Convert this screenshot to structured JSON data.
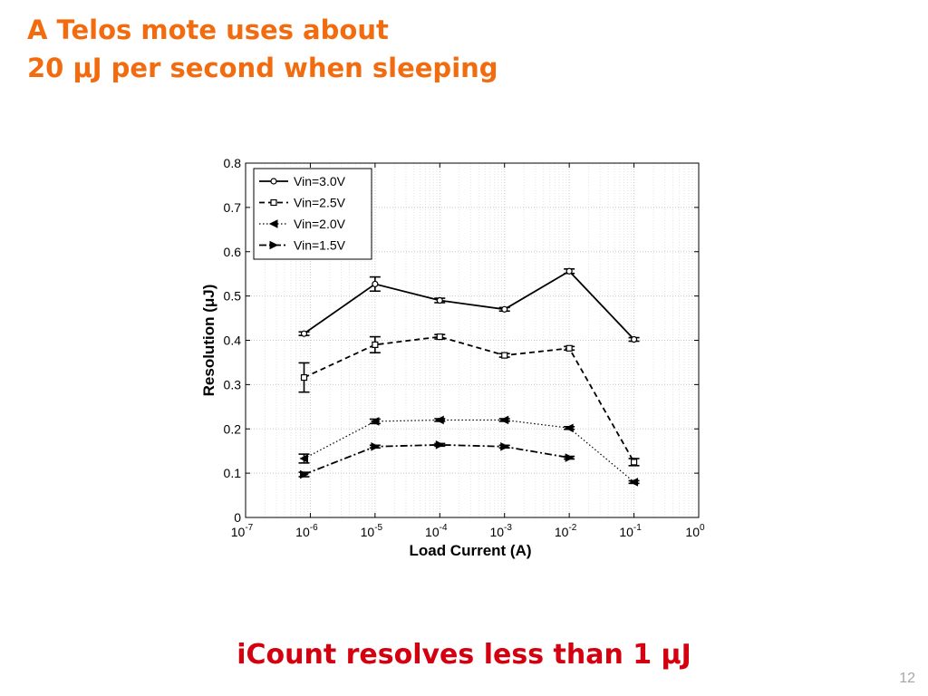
{
  "slide": {
    "title_line1": "A Telos mote uses about",
    "title_line2": "20 μJ per second when sleeping",
    "caption": "iCount resolves less than 1 μJ",
    "page_number": "12"
  },
  "colors": {
    "title": "#f26b0f",
    "caption": "#d4000f",
    "page_number": "#a7a7a7"
  },
  "chart_data": {
    "type": "line",
    "xlabel": "Load Current (A)",
    "ylabel": "Resolution (μJ)",
    "x_scale": "log",
    "xlim": [
      1e-07,
      1
    ],
    "ylim": [
      0,
      0.8
    ],
    "x_tick_exponents": [
      "-7",
      "-6",
      "-5",
      "-4",
      "-3",
      "-2",
      "-1",
      "0"
    ],
    "y_ticks": [
      "0",
      "0.1",
      "0.2",
      "0.3",
      "0.4",
      "0.5",
      "0.6",
      "0.7",
      "0.8"
    ],
    "grid": true,
    "legend_position": "top-left",
    "series": [
      {
        "name": "Vin=3.0V",
        "marker": "circle",
        "line": "solid",
        "x": [
          8e-07,
          1e-05,
          0.0001,
          0.001,
          0.01,
          0.1
        ],
        "y": [
          0.415,
          0.527,
          0.49,
          0.47,
          0.556,
          0.402
        ],
        "err": [
          0.004,
          0.016,
          0.005,
          0.004,
          0.005,
          0.004
        ]
      },
      {
        "name": "Vin=2.5V",
        "marker": "square",
        "line": "dashed",
        "x": [
          8e-07,
          1e-05,
          0.0001,
          0.001,
          0.01,
          0.1
        ],
        "y": [
          0.316,
          0.39,
          0.408,
          0.366,
          0.382,
          0.125
        ],
        "err": [
          0.033,
          0.018,
          0.005,
          0.004,
          0.004,
          0.008
        ]
      },
      {
        "name": "Vin=2.0V",
        "marker": "triangle-left",
        "line": "dotted",
        "x": [
          8e-07,
          1e-05,
          0.0001,
          0.001,
          0.01,
          0.1
        ],
        "y": [
          0.133,
          0.217,
          0.22,
          0.22,
          0.202,
          0.08
        ],
        "err": [
          0.01,
          0.005,
          0.003,
          0.003,
          0.003,
          0.003
        ]
      },
      {
        "name": "Vin=1.5V",
        "marker": "triangle-right",
        "line": "dash-dot",
        "x": [
          8e-07,
          1e-05,
          0.0001,
          0.001,
          0.01
        ],
        "y": [
          0.097,
          0.16,
          0.164,
          0.16,
          0.135
        ],
        "err": [
          0.005,
          0.003,
          0.003,
          0.003,
          0.003
        ]
      }
    ]
  }
}
